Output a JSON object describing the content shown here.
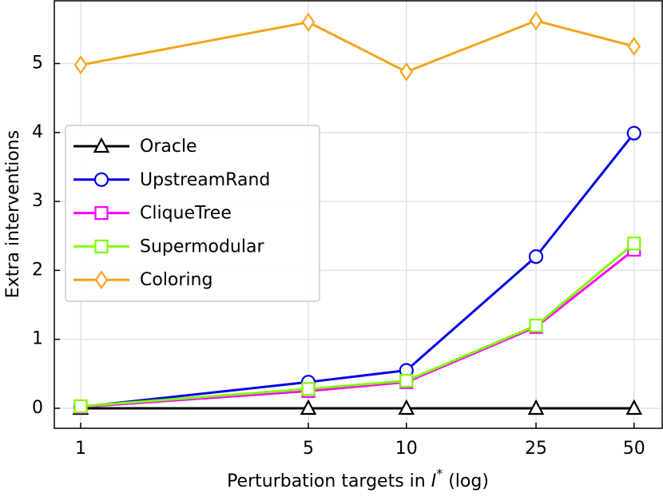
{
  "chart_data": {
    "type": "line",
    "x_label": [
      "Perturbation targets in ",
      "I",
      "*",
      " (log)"
    ],
    "y_label": "Extra interventions",
    "x": [
      1,
      5,
      10,
      25,
      50
    ],
    "x_scale": "log",
    "xlim": [
      0.83,
      61
    ],
    "xticks": [
      1,
      5,
      10,
      25,
      50
    ],
    "ylim": [
      -0.29,
      5.91
    ],
    "yticks": [
      0,
      1,
      2,
      3,
      4,
      5
    ],
    "grid": true,
    "legend_loc": "center left",
    "series": [
      {
        "name": "Oracle",
        "color": "#000000",
        "marker": "triangle",
        "values": [
          0,
          0,
          0,
          0,
          0
        ]
      },
      {
        "name": "UpstreamRand",
        "color": "#0000e6",
        "marker": "circle",
        "values": [
          0.02,
          0.38,
          0.55,
          2.2,
          3.99
        ]
      },
      {
        "name": "CliqueTree",
        "color": "#ff00ff",
        "marker": "square",
        "values": [
          0.02,
          0.25,
          0.38,
          1.18,
          2.3
        ]
      },
      {
        "name": "Supermodular",
        "color": "#7fff00",
        "marker": "square",
        "values": [
          0.03,
          0.28,
          0.4,
          1.2,
          2.39
        ]
      },
      {
        "name": "Coloring",
        "color": "#f5a31a",
        "marker": "diamond",
        "values": [
          4.98,
          5.6,
          4.88,
          5.62,
          5.25
        ]
      }
    ]
  }
}
